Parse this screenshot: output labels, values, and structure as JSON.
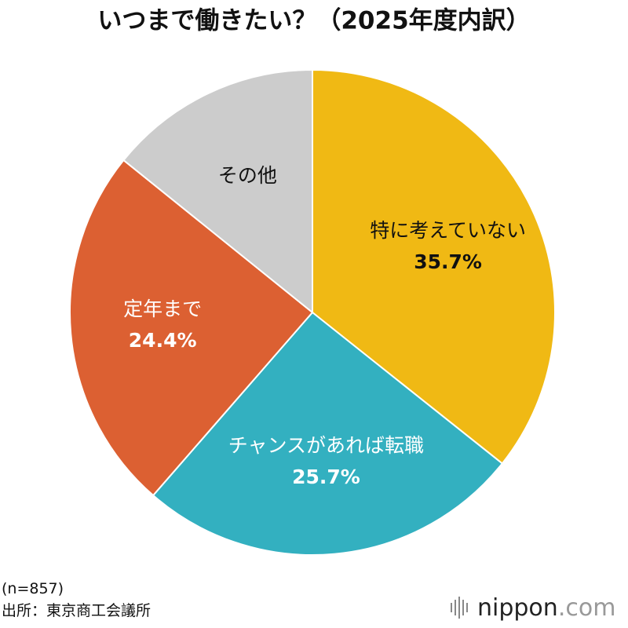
{
  "chart_data": {
    "type": "pie",
    "title": "いつまで働きたい？（2025年度内訳）",
    "categories": [
      "特に考えていない",
      "チャンスがあれば転職",
      "定年まで",
      "その他"
    ],
    "values": [
      35.7,
      25.7,
      24.4,
      14.2
    ],
    "value_labels": [
      "35.7%",
      "25.7%",
      "24.4%",
      null
    ],
    "colors": [
      "#f0b914",
      "#33b0c0",
      "#dc6032",
      "#cccccc"
    ],
    "label_colors": [
      "#111111",
      "#ffffff",
      "#ffffff",
      "#111111"
    ],
    "note": "(n=857)",
    "source": "出所：東京商工会議所"
  },
  "logo": {
    "name": "nippon",
    "suffix": ".com"
  }
}
